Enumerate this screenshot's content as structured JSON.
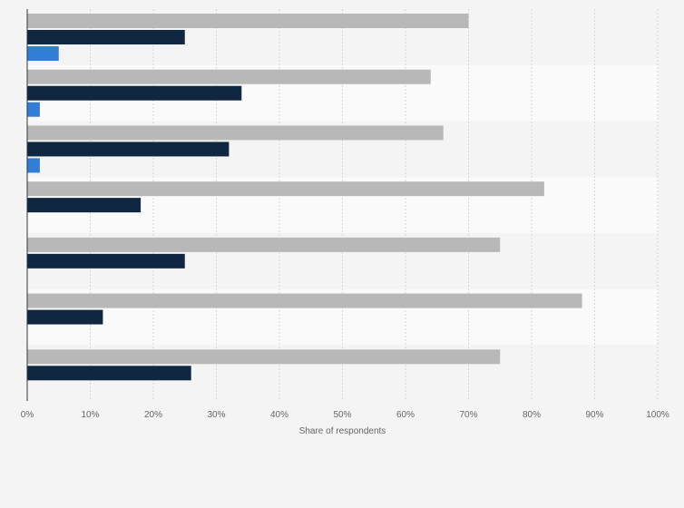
{
  "chart_data": {
    "type": "bar",
    "orientation": "horizontal",
    "categories": [
      "",
      "",
      "",
      "",
      "",
      "",
      ""
    ],
    "series": [
      {
        "values": [
          70,
          64,
          66,
          82,
          75,
          88,
          75
        ]
      },
      {
        "values": [
          25,
          34,
          32,
          18,
          25,
          12,
          26
        ]
      },
      {
        "values": [
          5,
          2,
          2,
          0,
          0,
          0,
          0
        ]
      }
    ],
    "colors": [
      "#b8b8b8",
      "#0f2740",
      "#2f7ed8"
    ],
    "band_colors": [
      "#f4f4f4",
      "#fafafa"
    ],
    "xlabel": "Share of respondents",
    "ylabel": "",
    "xlim": [
      0,
      100
    ],
    "x_ticks": [
      "0%",
      "10%",
      "20%",
      "30%",
      "40%",
      "50%",
      "60%",
      "70%",
      "80%",
      "90%",
      "100%"
    ],
    "grid": true,
    "legend": "none"
  }
}
